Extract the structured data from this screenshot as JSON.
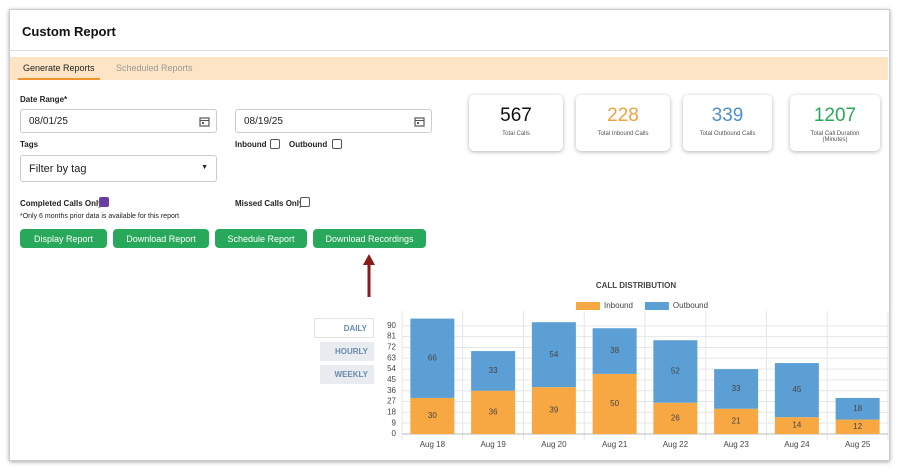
{
  "header": {
    "title": "Custom Report"
  },
  "tabs": [
    "Generate Reports",
    "Scheduled Reports"
  ],
  "form": {
    "date_range_label": "Date Range*",
    "start_date": "08/01/25",
    "end_date": "08/19/25",
    "tags_label": "Tags",
    "tags_placeholder": "Filter by tag",
    "inbound_label": "Inbound",
    "outbound_label": "Outbound",
    "completed_label": "Completed Calls Only",
    "missed_label": "Missed Calls Only",
    "note": "*Only 6 months prior data is available for this report"
  },
  "buttons": [
    "Display Report",
    "Download Report",
    "Schedule Report",
    "Download Recordings"
  ],
  "stats": [
    {
      "value": "567",
      "label": "Total Calls"
    },
    {
      "value": "228",
      "label": "Total Inbound Calls"
    },
    {
      "value": "339",
      "label": "Total Outbound Calls"
    },
    {
      "value": "1207",
      "label": "Total Call Duration (Minutes)"
    }
  ],
  "periods": [
    "DAILY",
    "HOURLY",
    "WEEKLY"
  ],
  "chart_data": {
    "type": "bar",
    "stacked": true,
    "title": "CALL DISTRIBUTION",
    "categories": [
      "Aug 18",
      "Aug 19",
      "Aug 20",
      "Aug 21",
      "Aug 22",
      "Aug 23",
      "Aug 24",
      "Aug 25"
    ],
    "series": [
      {
        "name": "Inbound",
        "color": "#f7a843",
        "values": [
          30,
          36,
          39,
          50,
          26,
          21,
          14,
          12
        ]
      },
      {
        "name": "Outbound",
        "color": "#5b9fd4",
        "values": [
          66,
          33,
          54,
          38,
          52,
          33,
          45,
          18
        ]
      }
    ],
    "ylim": [
      0,
      99
    ],
    "yticks": [
      0,
      9,
      18,
      27,
      36,
      45,
      54,
      63,
      72,
      81,
      90
    ],
    "grid": true,
    "legend": "top"
  }
}
